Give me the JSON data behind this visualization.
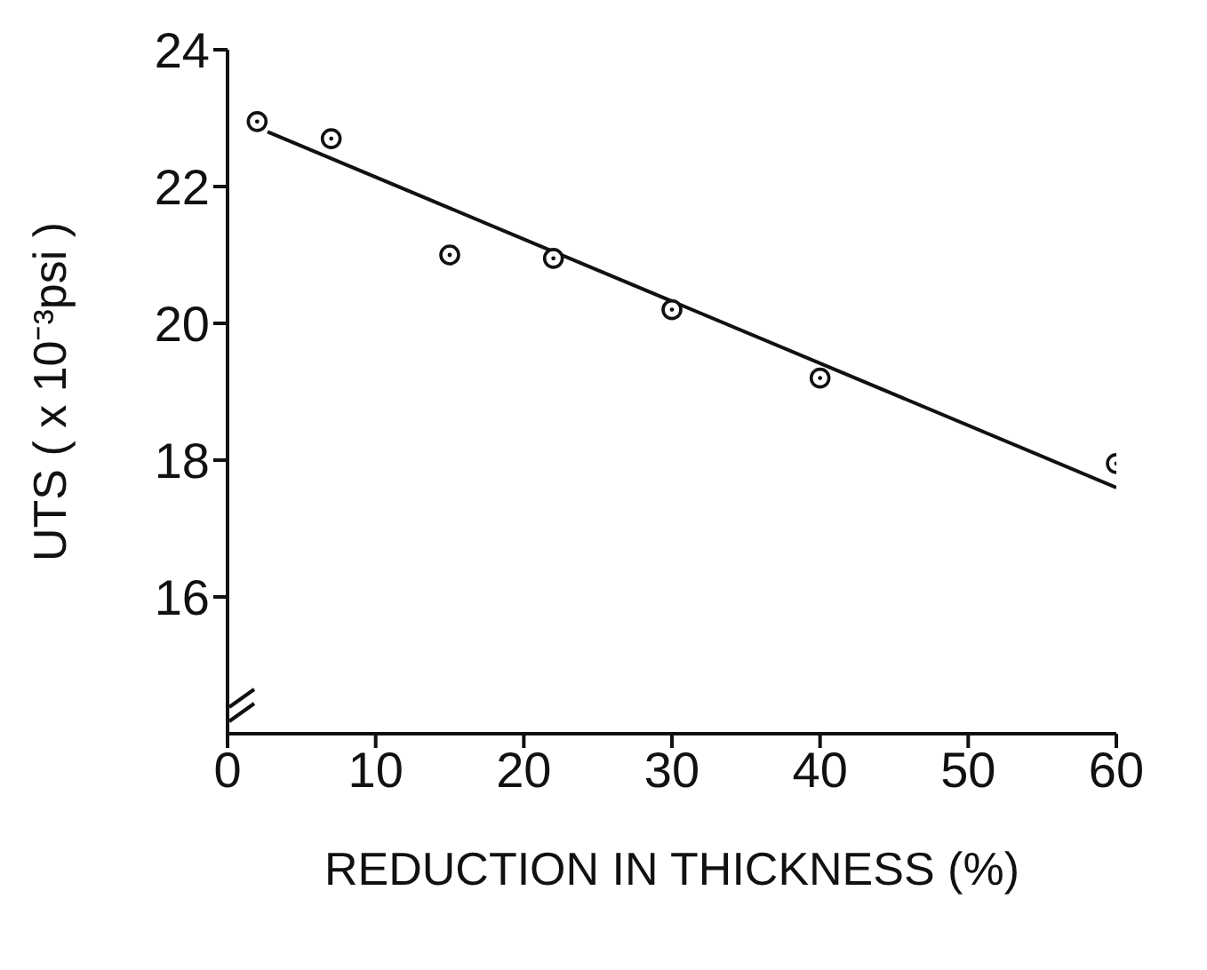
{
  "chart_data": {
    "type": "scatter",
    "xlabel": "REDUCTION IN THICKNESS (%)",
    "ylabel": "UTS ( x 10⁻³psi )",
    "series": [
      {
        "type": "scatter",
        "color": "#111111",
        "x": [
          2,
          7,
          15,
          22,
          30,
          40,
          60
        ],
        "values": [
          22.95,
          22.7,
          21.0,
          20.95,
          20.2,
          19.2,
          17.95
        ],
        "marker": "circle"
      },
      {
        "type": "line",
        "color": "#111111",
        "x": [
          2.7,
          60
        ],
        "values": [
          22.8,
          17.6
        ]
      }
    ],
    "xlim": [
      0,
      60
    ],
    "ylim": [
      14,
      24
    ],
    "xticks": [
      0,
      10,
      20,
      30,
      40,
      50,
      60
    ],
    "yticks": [
      16,
      18,
      20,
      22,
      24
    ],
    "grid": false,
    "legend": false,
    "line_style": "solid"
  }
}
